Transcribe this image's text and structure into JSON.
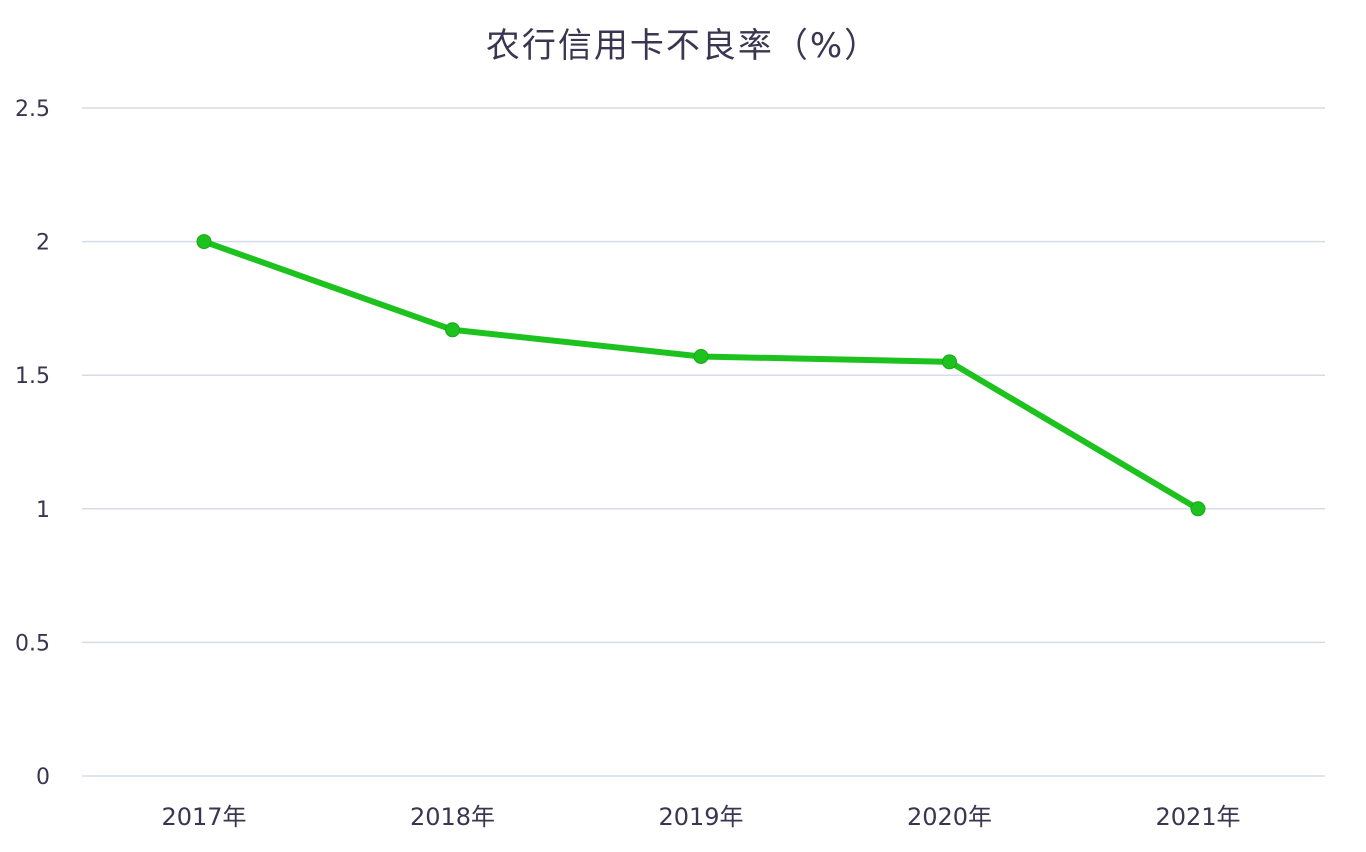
{
  "chart_data": {
    "type": "line",
    "title": "农行信用卡不良率（%）",
    "categories": [
      "2017年",
      "2018年",
      "2019年",
      "2020年",
      "2021年"
    ],
    "series": [
      {
        "values": [
          2.0,
          1.67,
          1.57,
          1.55,
          1.0
        ],
        "color": "#1ec21e"
      }
    ],
    "yticks": [
      "0",
      "0.5",
      "1",
      "1.5",
      "2",
      "2.5"
    ],
    "ylim": [
      0,
      2.5
    ],
    "grid": true,
    "gridColor": "#d5dce6"
  }
}
